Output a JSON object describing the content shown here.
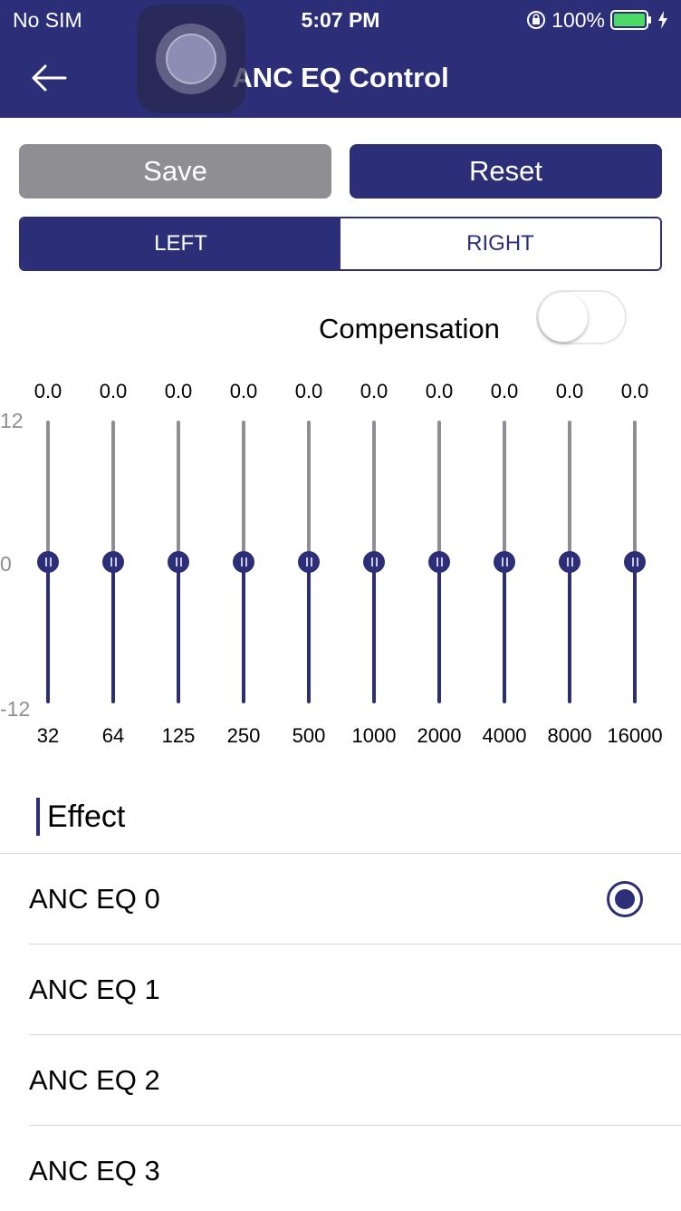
{
  "status_bar": {
    "carrier": "No SIM",
    "time": "5:07 PM",
    "battery": "100%"
  },
  "nav": {
    "title": "ANC EQ Control"
  },
  "actions": {
    "save_label": "Save",
    "reset_label": "Reset"
  },
  "channel": {
    "left_label": "LEFT",
    "right_label": "RIGHT",
    "selected": "LEFT"
  },
  "compensation": {
    "label": "Compensation",
    "enabled": false
  },
  "eq": {
    "axis_max": "12",
    "axis_mid": "0",
    "axis_min": "-12",
    "range": [
      -12,
      12
    ],
    "bands": [
      {
        "freq": "32",
        "gain": "0.0",
        "value": 0
      },
      {
        "freq": "64",
        "gain": "0.0",
        "value": 0
      },
      {
        "freq": "125",
        "gain": "0.0",
        "value": 0
      },
      {
        "freq": "250",
        "gain": "0.0",
        "value": 0
      },
      {
        "freq": "500",
        "gain": "0.0",
        "value": 0
      },
      {
        "freq": "1000",
        "gain": "0.0",
        "value": 0
      },
      {
        "freq": "2000",
        "gain": "0.0",
        "value": 0
      },
      {
        "freq": "4000",
        "gain": "0.0",
        "value": 0
      },
      {
        "freq": "8000",
        "gain": "0.0",
        "value": 0
      },
      {
        "freq": "16000",
        "gain": "0.0",
        "value": 0
      }
    ]
  },
  "effect": {
    "heading": "Effect",
    "selected_index": 0,
    "items": [
      {
        "label": "ANC EQ 0"
      },
      {
        "label": "ANC EQ 1"
      },
      {
        "label": "ANC EQ 2"
      },
      {
        "label": "ANC EQ 3"
      }
    ]
  },
  "colors": {
    "primary": "#2c2f78",
    "disabled": "#8e8e93",
    "track_upper": "#8e8e93"
  },
  "icons": {
    "back": "arrow-left-icon",
    "lock": "orientation-lock-icon",
    "battery": "battery-icon",
    "charging": "bolt-icon"
  }
}
